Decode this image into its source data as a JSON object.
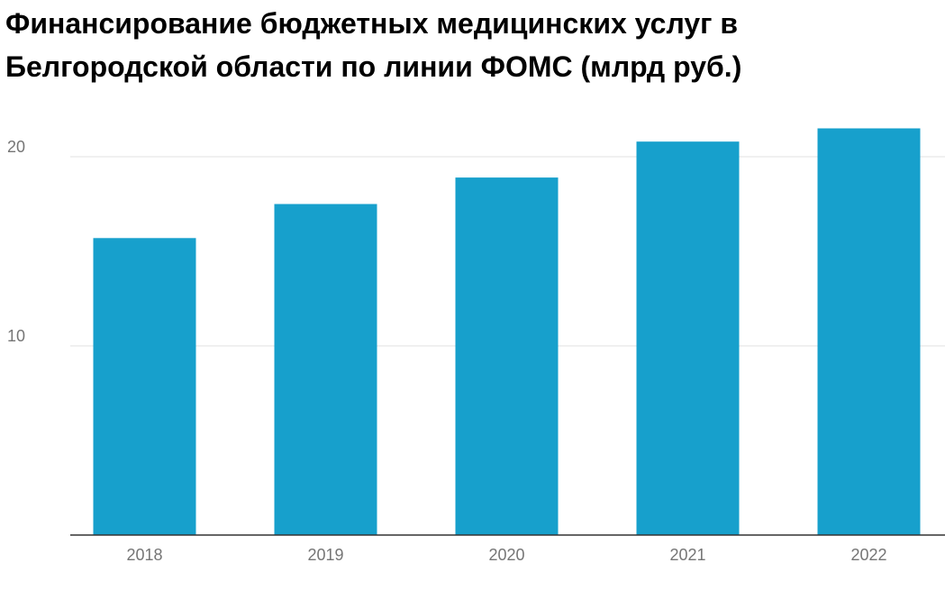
{
  "chart_data": {
    "type": "bar",
    "title": "Финансирование бюджетных медицинских услуг в Белгородской области по линии ФОМС (млрд руб.)",
    "categories": [
      "2018",
      "2019",
      "2020",
      "2021",
      "2022"
    ],
    "values": [
      15.7,
      17.5,
      18.9,
      20.8,
      21.5
    ],
    "color": "#17a0cc",
    "ylim": [
      0,
      22
    ],
    "yticks": [
      10,
      20
    ],
    "grid": true
  }
}
